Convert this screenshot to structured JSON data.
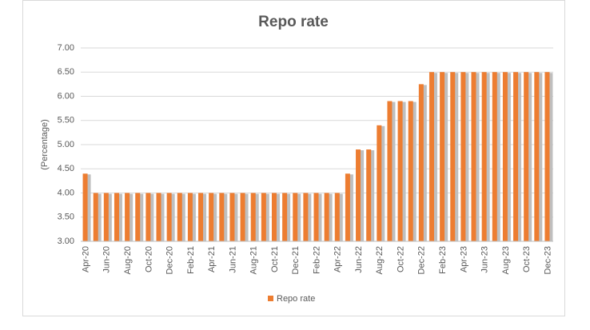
{
  "chart_data": {
    "type": "bar",
    "title": "Repo rate",
    "y_label": "(Percentage)",
    "categories": [
      "Apr-20",
      null,
      "Jun-20",
      null,
      "Aug-20",
      null,
      "Oct-20",
      null,
      "Dec-20",
      null,
      "Feb-21",
      null,
      "Apr-21",
      null,
      "Jun-21",
      null,
      "Aug-21",
      null,
      "Oct-21",
      null,
      "Dec-21",
      null,
      "Feb-22",
      null,
      "Apr-22",
      null,
      "Jun-22",
      null,
      "Aug-22",
      null,
      "Oct-22",
      null,
      "Dec-22",
      null,
      "Feb-23",
      null,
      "Apr-23",
      null,
      "Jun-23",
      null,
      "Aug-23",
      null,
      "Oct-23",
      null,
      "Dec-23"
    ],
    "series": [
      {
        "name": "Repo rate",
        "color": "#ed7d31",
        "values": [
          4.4,
          4,
          4,
          4,
          4,
          4,
          4,
          4,
          4,
          4,
          4,
          4,
          4,
          4,
          4,
          4,
          4,
          4,
          4,
          4,
          4,
          4,
          4,
          4,
          4,
          4.4,
          4.9,
          4.9,
          5.4,
          5.9,
          5.9,
          5.9,
          6.25,
          6.5,
          6.5,
          6.5,
          6.5,
          6.5,
          6.5,
          6.5,
          6.5,
          6.5,
          6.5,
          6.5,
          6.5
        ]
      }
    ],
    "ylim": [
      3,
      7
    ],
    "yticks": [
      {
        "value": 3,
        "label": "3.00"
      },
      {
        "value": 3.5,
        "label": "3.50"
      },
      {
        "value": 4,
        "label": "4.00"
      },
      {
        "value": 4.5,
        "label": "4.50"
      },
      {
        "value": 5,
        "label": "5.00"
      },
      {
        "value": 5.5,
        "label": "5.50"
      },
      {
        "value": 6,
        "label": "6.00"
      },
      {
        "value": 6.5,
        "label": "6.50"
      },
      {
        "value": 7,
        "label": "7.00"
      }
    ],
    "grid": true,
    "legend": "bottom"
  }
}
